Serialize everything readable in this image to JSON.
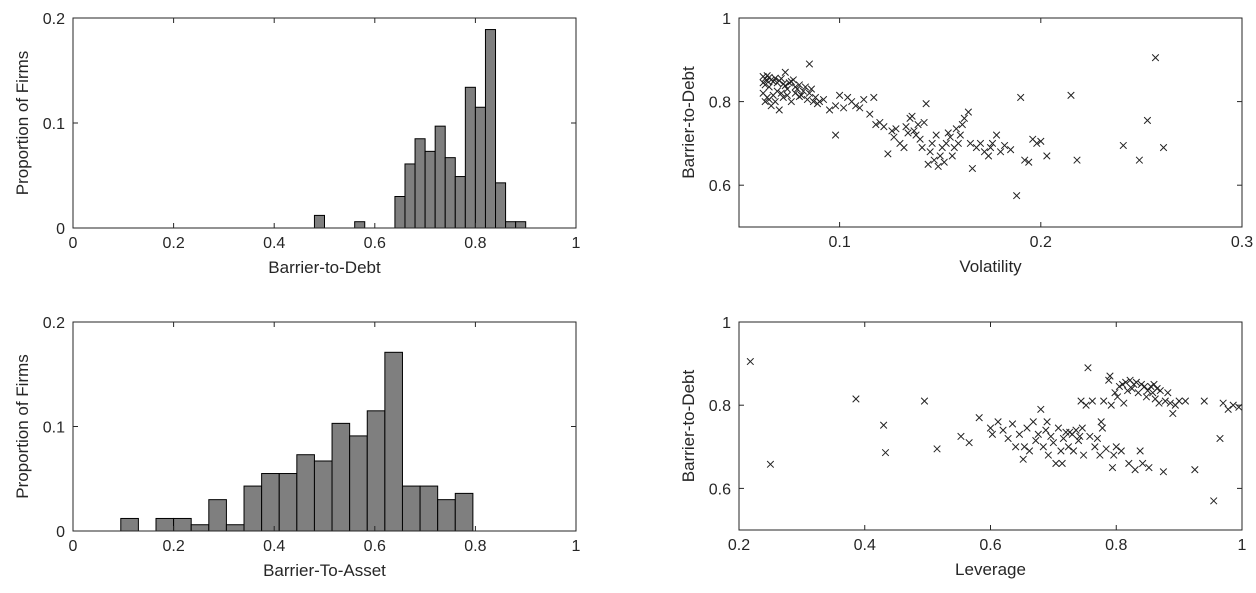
{
  "chart_data": [
    {
      "id": "hist-barrier-to-debt",
      "type": "bar",
      "xlabel": "Barrier-to-Debt",
      "ylabel": "Proportion of Firms",
      "xlim": [
        0,
        1
      ],
      "ylim": [
        0,
        0.2
      ],
      "xticks": [
        0,
        0.2,
        0.4,
        0.6,
        0.8,
        1
      ],
      "xtick_labels": [
        "0",
        "0.2",
        "0.4",
        "0.6",
        "0.8",
        "1"
      ],
      "yticks": [
        0,
        0.1,
        0.2
      ],
      "ytick_labels": [
        "0",
        "0.1",
        "0.2"
      ],
      "bin_width": 0.02,
      "bins": [
        {
          "x0": 0.48,
          "value": 0.012
        },
        {
          "x0": 0.56,
          "value": 0.006
        },
        {
          "x0": 0.64,
          "value": 0.03
        },
        {
          "x0": 0.66,
          "value": 0.061
        },
        {
          "x0": 0.68,
          "value": 0.085
        },
        {
          "x0": 0.7,
          "value": 0.073
        },
        {
          "x0": 0.72,
          "value": 0.097
        },
        {
          "x0": 0.74,
          "value": 0.067
        },
        {
          "x0": 0.76,
          "value": 0.049
        },
        {
          "x0": 0.78,
          "value": 0.134
        },
        {
          "x0": 0.8,
          "value": 0.115
        },
        {
          "x0": 0.82,
          "value": 0.189
        },
        {
          "x0": 0.84,
          "value": 0.043
        },
        {
          "x0": 0.86,
          "value": 0.006
        },
        {
          "x0": 0.88,
          "value": 0.006
        }
      ],
      "bar_color": "#7f7f7f",
      "grid": false
    },
    {
      "id": "scatter-volatility",
      "type": "scatter",
      "xlabel": "Volatility",
      "ylabel": "Barrier-to-Debt",
      "xlim": [
        0.05,
        0.3
      ],
      "ylim": [
        0.5,
        1
      ],
      "xticks": [
        0.1,
        0.2,
        0.3
      ],
      "xtick_labels": [
        "0.1",
        "0.2",
        "0.3"
      ],
      "yticks": [
        0.6,
        0.8,
        1
      ],
      "ytick_labels": [
        "0.6",
        "0.8",
        "1"
      ],
      "marker": "x",
      "grid": false,
      "points": [
        [
          0.062,
          0.86
        ],
        [
          0.063,
          0.855
        ],
        [
          0.064,
          0.85
        ],
        [
          0.062,
          0.845
        ],
        [
          0.065,
          0.858
        ],
        [
          0.066,
          0.852
        ],
        [
          0.063,
          0.84
        ],
        [
          0.064,
          0.862
        ],
        [
          0.067,
          0.848
        ],
        [
          0.068,
          0.856
        ],
        [
          0.065,
          0.835
        ],
        [
          0.069,
          0.845
        ],
        [
          0.07,
          0.85
        ],
        [
          0.072,
          0.842
        ],
        [
          0.071,
          0.855
        ],
        [
          0.073,
          0.838
        ],
        [
          0.075,
          0.845
        ],
        [
          0.074,
          0.83
        ],
        [
          0.076,
          0.848
        ],
        [
          0.078,
          0.835
        ],
        [
          0.077,
          0.852
        ],
        [
          0.079,
          0.83
        ],
        [
          0.08,
          0.84
        ],
        [
          0.082,
          0.825
        ],
        [
          0.083,
          0.835
        ],
        [
          0.081,
          0.815
        ],
        [
          0.085,
          0.82
        ],
        [
          0.086,
          0.83
        ],
        [
          0.088,
          0.81
        ],
        [
          0.09,
          0.8
        ],
        [
          0.063,
          0.8
        ],
        [
          0.064,
          0.81
        ],
        [
          0.066,
          0.79
        ],
        [
          0.068,
          0.8
        ],
        [
          0.07,
          0.78
        ],
        [
          0.072,
          0.81
        ],
        [
          0.074,
          0.815
        ],
        [
          0.076,
          0.8
        ],
        [
          0.078,
          0.82
        ],
        [
          0.08,
          0.812
        ],
        [
          0.085,
          0.89
        ],
        [
          0.073,
          0.87
        ],
        [
          0.069,
          0.825
        ],
        [
          0.071,
          0.82
        ],
        [
          0.062,
          0.82
        ],
        [
          0.065,
          0.805
        ],
        [
          0.067,
          0.815
        ],
        [
          0.084,
          0.805
        ],
        [
          0.087,
          0.8
        ],
        [
          0.089,
          0.795
        ],
        [
          0.092,
          0.805
        ],
        [
          0.095,
          0.78
        ],
        [
          0.098,
          0.79
        ],
        [
          0.1,
          0.815
        ],
        [
          0.102,
          0.785
        ],
        [
          0.104,
          0.81
        ],
        [
          0.106,
          0.8
        ],
        [
          0.108,
          0.79
        ],
        [
          0.11,
          0.785
        ],
        [
          0.112,
          0.805
        ],
        [
          0.098,
          0.72
        ],
        [
          0.115,
          0.77
        ],
        [
          0.117,
          0.81
        ],
        [
          0.12,
          0.75
        ],
        [
          0.122,
          0.74
        ],
        [
          0.124,
          0.675
        ],
        [
          0.126,
          0.73
        ],
        [
          0.128,
          0.735
        ],
        [
          0.13,
          0.7
        ],
        [
          0.132,
          0.69
        ],
        [
          0.133,
          0.74
        ],
        [
          0.135,
          0.76
        ],
        [
          0.136,
          0.765
        ],
        [
          0.137,
          0.73
        ],
        [
          0.138,
          0.72
        ],
        [
          0.139,
          0.745
        ],
        [
          0.14,
          0.71
        ],
        [
          0.141,
          0.69
        ],
        [
          0.142,
          0.75
        ],
        [
          0.143,
          0.795
        ],
        [
          0.144,
          0.65
        ],
        [
          0.145,
          0.68
        ],
        [
          0.146,
          0.7
        ],
        [
          0.147,
          0.66
        ],
        [
          0.148,
          0.72
        ],
        [
          0.149,
          0.645
        ],
        [
          0.15,
          0.67
        ],
        [
          0.151,
          0.69
        ],
        [
          0.152,
          0.655
        ],
        [
          0.153,
          0.7
        ],
        [
          0.154,
          0.725
        ],
        [
          0.155,
          0.715
        ],
        [
          0.156,
          0.67
        ],
        [
          0.157,
          0.69
        ],
        [
          0.158,
          0.735
        ],
        [
          0.159,
          0.7
        ],
        [
          0.16,
          0.72
        ],
        [
          0.162,
          0.76
        ],
        [
          0.164,
          0.775
        ],
        [
          0.165,
          0.7
        ],
        [
          0.166,
          0.64
        ],
        [
          0.168,
          0.69
        ],
        [
          0.17,
          0.7
        ],
        [
          0.172,
          0.68
        ],
        [
          0.174,
          0.67
        ],
        [
          0.176,
          0.7
        ],
        [
          0.178,
          0.72
        ],
        [
          0.18,
          0.68
        ],
        [
          0.182,
          0.695
        ],
        [
          0.185,
          0.685
        ],
        [
          0.188,
          0.575
        ],
        [
          0.19,
          0.81
        ],
        [
          0.192,
          0.66
        ],
        [
          0.194,
          0.655
        ],
        [
          0.196,
          0.71
        ],
        [
          0.198,
          0.7
        ],
        [
          0.2,
          0.705
        ],
        [
          0.203,
          0.67
        ],
        [
          0.215,
          0.815
        ],
        [
          0.218,
          0.66
        ],
        [
          0.241,
          0.695
        ],
        [
          0.249,
          0.66
        ],
        [
          0.253,
          0.755
        ],
        [
          0.257,
          0.905
        ],
        [
          0.261,
          0.69
        ],
        [
          0.118,
          0.745
        ],
        [
          0.134,
          0.725
        ],
        [
          0.127,
          0.715
        ],
        [
          0.161,
          0.745
        ],
        [
          0.175,
          0.69
        ]
      ]
    },
    {
      "id": "hist-barrier-to-asset",
      "type": "bar",
      "xlabel": "Barrier-To-Asset",
      "ylabel": "Proportion of Firms",
      "xlim": [
        0,
        1
      ],
      "ylim": [
        0,
        0.2
      ],
      "xticks": [
        0,
        0.2,
        0.4,
        0.6,
        0.8,
        1
      ],
      "xtick_labels": [
        "0",
        "0.2",
        "0.4",
        "0.6",
        "0.8",
        "1"
      ],
      "yticks": [
        0,
        0.1,
        0.2
      ],
      "ytick_labels": [
        "0",
        "0.1",
        "0.2"
      ],
      "bin_width": 0.035,
      "bins": [
        {
          "x0": 0.095,
          "value": 0.012
        },
        {
          "x0": 0.165,
          "value": 0.012
        },
        {
          "x0": 0.2,
          "value": 0.012
        },
        {
          "x0": 0.235,
          "value": 0.006
        },
        {
          "x0": 0.27,
          "value": 0.03
        },
        {
          "x0": 0.305,
          "value": 0.006
        },
        {
          "x0": 0.34,
          "value": 0.043
        },
        {
          "x0": 0.375,
          "value": 0.055
        },
        {
          "x0": 0.41,
          "value": 0.055
        },
        {
          "x0": 0.445,
          "value": 0.073
        },
        {
          "x0": 0.48,
          "value": 0.067
        },
        {
          "x0": 0.515,
          "value": 0.103
        },
        {
          "x0": 0.55,
          "value": 0.091
        },
        {
          "x0": 0.585,
          "value": 0.115
        },
        {
          "x0": 0.62,
          "value": 0.171
        },
        {
          "x0": 0.655,
          "value": 0.043
        },
        {
          "x0": 0.69,
          "value": 0.043
        },
        {
          "x0": 0.725,
          "value": 0.03
        },
        {
          "x0": 0.76,
          "value": 0.036
        }
      ],
      "bar_color": "#7f7f7f",
      "grid": false
    },
    {
      "id": "scatter-leverage",
      "type": "scatter",
      "xlabel": "Leverage",
      "ylabel": "Barrier-to-Debt",
      "xlim": [
        0.2,
        1
      ],
      "ylim": [
        0.5,
        1
      ],
      "xticks": [
        0.2,
        0.4,
        0.6,
        0.8,
        1
      ],
      "xtick_labels": [
        "0.2",
        "0.4",
        "0.6",
        "0.8",
        "1"
      ],
      "yticks": [
        0.6,
        0.8,
        1
      ],
      "ytick_labels": [
        "0.6",
        "0.8",
        "1"
      ],
      "marker": "x",
      "grid": false,
      "points": [
        [
          0.218,
          0.905
        ],
        [
          0.25,
          0.658
        ],
        [
          0.386,
          0.815
        ],
        [
          0.43,
          0.752
        ],
        [
          0.433,
          0.686
        ],
        [
          0.495,
          0.81
        ],
        [
          0.515,
          0.695
        ],
        [
          0.553,
          0.725
        ],
        [
          0.566,
          0.71
        ],
        [
          0.582,
          0.77
        ],
        [
          0.6,
          0.745
        ],
        [
          0.603,
          0.73
        ],
        [
          0.612,
          0.76
        ],
        [
          0.62,
          0.74
        ],
        [
          0.628,
          0.72
        ],
        [
          0.635,
          0.755
        ],
        [
          0.64,
          0.7
        ],
        [
          0.646,
          0.73
        ],
        [
          0.652,
          0.67
        ],
        [
          0.658,
          0.745
        ],
        [
          0.662,
          0.69
        ],
        [
          0.668,
          0.76
        ],
        [
          0.672,
          0.715
        ],
        [
          0.676,
          0.73
        ],
        [
          0.68,
          0.79
        ],
        [
          0.684,
          0.7
        ],
        [
          0.688,
          0.74
        ],
        [
          0.692,
          0.68
        ],
        [
          0.696,
          0.725
        ],
        [
          0.7,
          0.71
        ],
        [
          0.704,
          0.66
        ],
        [
          0.708,
          0.745
        ],
        [
          0.712,
          0.69
        ],
        [
          0.716,
          0.72
        ],
        [
          0.72,
          0.735
        ],
        [
          0.724,
          0.7
        ],
        [
          0.726,
          0.735
        ],
        [
          0.73,
          0.73
        ],
        [
          0.732,
          0.69
        ],
        [
          0.736,
          0.74
        ],
        [
          0.74,
          0.715
        ],
        [
          0.744,
          0.81
        ],
        [
          0.746,
          0.745
        ],
        [
          0.748,
          0.68
        ],
        [
          0.752,
          0.8
        ],
        [
          0.755,
          0.89
        ],
        [
          0.758,
          0.725
        ],
        [
          0.762,
          0.81
        ],
        [
          0.766,
          0.7
        ],
        [
          0.77,
          0.72
        ],
        [
          0.774,
          0.68
        ],
        [
          0.778,
          0.745
        ],
        [
          0.78,
          0.81
        ],
        [
          0.784,
          0.695
        ],
        [
          0.788,
          0.86
        ],
        [
          0.79,
          0.87
        ],
        [
          0.792,
          0.8
        ],
        [
          0.794,
          0.65
        ],
        [
          0.798,
          0.83
        ],
        [
          0.8,
          0.7
        ],
        [
          0.802,
          0.82
        ],
        [
          0.805,
          0.845
        ],
        [
          0.808,
          0.69
        ],
        [
          0.81,
          0.85
        ],
        [
          0.812,
          0.805
        ],
        [
          0.815,
          0.855
        ],
        [
          0.818,
          0.835
        ],
        [
          0.82,
          0.66
        ],
        [
          0.822,
          0.86
        ],
        [
          0.825,
          0.84
        ],
        [
          0.828,
          0.85
        ],
        [
          0.83,
          0.645
        ],
        [
          0.832,
          0.855
        ],
        [
          0.835,
          0.83
        ],
        [
          0.838,
          0.69
        ],
        [
          0.84,
          0.85
        ],
        [
          0.842,
          0.66
        ],
        [
          0.845,
          0.845
        ],
        [
          0.848,
          0.82
        ],
        [
          0.85,
          0.835
        ],
        [
          0.852,
          0.65
        ],
        [
          0.855,
          0.845
        ],
        [
          0.858,
          0.83
        ],
        [
          0.86,
          0.85
        ],
        [
          0.862,
          0.815
        ],
        [
          0.865,
          0.84
        ],
        [
          0.868,
          0.805
        ],
        [
          0.87,
          0.835
        ],
        [
          0.875,
          0.64
        ],
        [
          0.878,
          0.81
        ],
        [
          0.882,
          0.83
        ],
        [
          0.886,
          0.805
        ],
        [
          0.89,
          0.78
        ],
        [
          0.894,
          0.8
        ],
        [
          0.9,
          0.81
        ],
        [
          0.91,
          0.81
        ],
        [
          0.925,
          0.645
        ],
        [
          0.94,
          0.81
        ],
        [
          0.955,
          0.57
        ],
        [
          0.965,
          0.72
        ],
        [
          0.97,
          0.805
        ],
        [
          0.978,
          0.79
        ],
        [
          0.986,
          0.8
        ],
        [
          0.995,
          0.795
        ],
        [
          0.654,
          0.7
        ],
        [
          0.69,
          0.76
        ],
        [
          0.714,
          0.66
        ],
        [
          0.742,
          0.725
        ],
        [
          0.776,
          0.76
        ],
        [
          0.796,
          0.68
        ]
      ]
    }
  ]
}
